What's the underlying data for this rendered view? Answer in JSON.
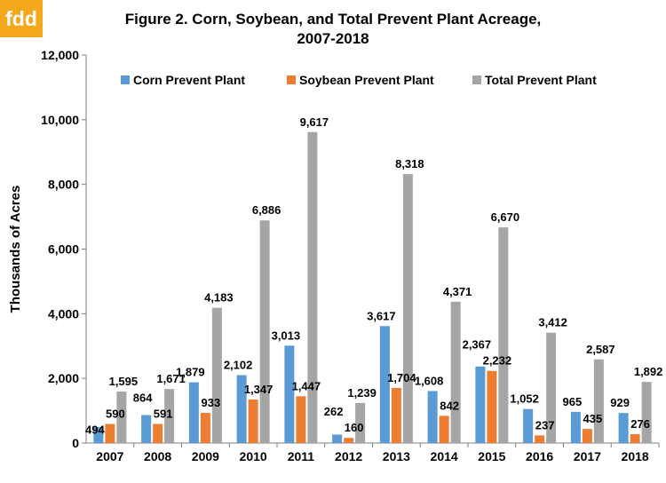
{
  "logo": {
    "text": "fdd",
    "color": "#f5a81c"
  },
  "chart_data": {
    "type": "bar",
    "title_line1": "Figure 2. Corn, Soybean, and Total Prevent Plant Acreage,",
    "title_line2": "2007-2018",
    "xlabel": "",
    "ylabel": "Thousands of Acres",
    "ylim": [
      0,
      12000
    ],
    "yticks": [
      "0",
      "2,000",
      "4,000",
      "6,000",
      "8,000",
      "10,000",
      "12,000"
    ],
    "grid": false,
    "legend_position": "top",
    "categories": [
      "2007",
      "2008",
      "2009",
      "2010",
      "2011",
      "2012",
      "2013",
      "2014",
      "2015",
      "2016",
      "2017",
      "2018"
    ],
    "series": [
      {
        "name": "Corn Prevent Plant",
        "color": "#5b9bd5",
        "values": [
          494,
          864,
          1879,
          2102,
          3013,
          262,
          3617,
          1608,
          2367,
          1052,
          965,
          929
        ],
        "labels": [
          "494",
          "864",
          "1,879",
          "2,102",
          "3,013",
          "262",
          "3,617",
          "1,608",
          "2,367",
          "1,052",
          "965",
          "929"
        ]
      },
      {
        "name": "Soybean Prevent Plant",
        "color": "#ed7d31",
        "values": [
          590,
          591,
          933,
          1347,
          1447,
          160,
          1704,
          842,
          2232,
          237,
          435,
          276
        ],
        "labels": [
          "590",
          "591",
          "933",
          "1,347",
          "1,447",
          "160",
          "1,704",
          "842",
          "2,232",
          "237",
          "435",
          "276"
        ]
      },
      {
        "name": "Total Prevent Plant",
        "color": "#a5a5a5",
        "values": [
          1595,
          1671,
          4183,
          6886,
          9617,
          1239,
          8318,
          4371,
          6670,
          3412,
          2587,
          1892
        ],
        "labels": [
          "1,595",
          "1,671",
          "4,183",
          "6,886",
          "9,617",
          "1,239",
          "8,318",
          "4,371",
          "6,670",
          "3,412",
          "2,587",
          "1,892"
        ]
      }
    ]
  }
}
